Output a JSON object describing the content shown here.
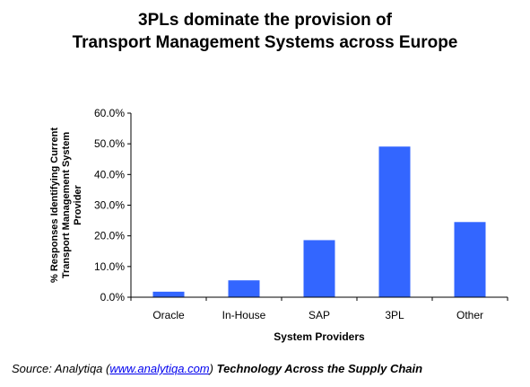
{
  "chart_data": {
    "type": "bar",
    "title_lines": [
      "3PLs dominate the provision of",
      "Transport Management Systems across Europe"
    ],
    "xlabel": "System Providers",
    "ylabel_lines": [
      "% Responses Identifying Current",
      "Transport Management System",
      "Provider"
    ],
    "categories": [
      "Oracle",
      "In-House",
      "SAP",
      "3PL",
      "Other"
    ],
    "values": [
      1.8,
      5.5,
      18.6,
      49.1,
      24.5
    ],
    "ylim": [
      0,
      60
    ],
    "yticks": [
      0,
      10,
      20,
      30,
      40,
      50,
      60
    ],
    "ytick_labels": [
      "0.0%",
      "10.0%",
      "20.0%",
      "30.0%",
      "40.0%",
      "50.0%",
      "60.0%"
    ],
    "grid": false,
    "legend": "none",
    "bar_color": "#3366ff"
  },
  "source": {
    "prefix": "Source: Analytiqa (",
    "link": "www.analytiqa.com",
    "suffix": ")",
    "strong": "Technology Across the Supply Chain"
  }
}
